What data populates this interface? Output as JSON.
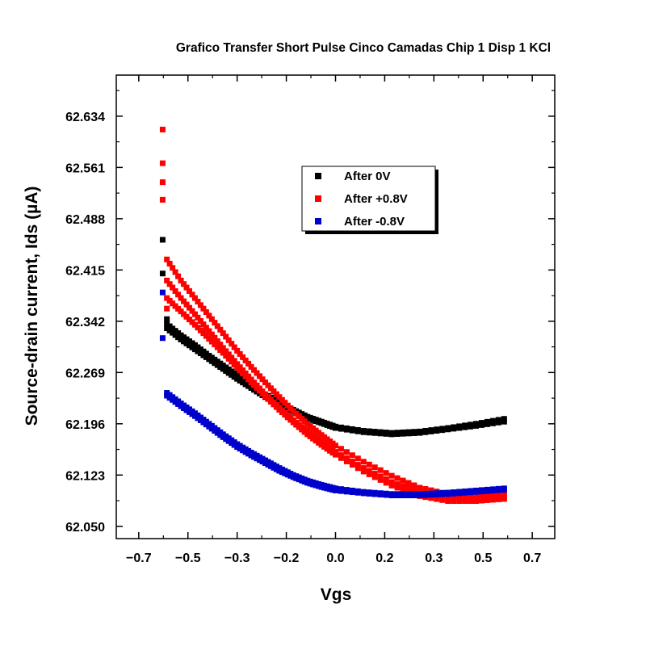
{
  "chart_data": {
    "type": "scatter",
    "title": "Grafico Transfer Short Pulse Cinco Camadas Chip 1 Disp 1 KCl",
    "xlabel": "Vgs",
    "ylabel": "Source-drain current, Ids (µA)",
    "xlim": [
      -0.78,
      0.78
    ],
    "ylim": [
      62.0325,
      62.6925
    ],
    "x_ticks": [
      -0.7,
      -0.525,
      -0.35,
      -0.175,
      0.0,
      0.175,
      0.35,
      0.525,
      0.7
    ],
    "x_tick_labels": [
      "−0.7",
      "−0.5",
      "−0.3",
      "−0.2",
      "0.0",
      "0.2",
      "0.3",
      "0.5",
      "0.7"
    ],
    "y_ticks": [
      62.05,
      62.123,
      62.196,
      62.269,
      62.342,
      62.415,
      62.488,
      62.561,
      62.634
    ],
    "y_tick_labels": [
      "62.050",
      "62.123",
      "62.196",
      "62.269",
      "62.342",
      "62.415",
      "62.488",
      "62.561",
      "62.634"
    ],
    "legend": {
      "placement": "top-center"
    },
    "series": [
      {
        "name": "After 0V",
        "color": "#000000",
        "branches": [
          {
            "x": [
              -0.6,
              -0.55,
              -0.5,
              -0.45,
              -0.4,
              -0.35,
              -0.3,
              -0.25,
              -0.2,
              -0.15,
              -0.1,
              -0.05,
              0.0,
              0.1,
              0.2,
              0.3,
              0.4,
              0.5,
              0.6
            ],
            "y": [
              62.338,
              62.322,
              62.308,
              62.293,
              62.279,
              62.265,
              62.251,
              62.238,
              62.227,
              62.216,
              62.206,
              62.199,
              62.192,
              62.186,
              62.183,
              62.185,
              62.19,
              62.196,
              62.203
            ]
          },
          {
            "x": [
              -0.6,
              -0.55,
              -0.5,
              -0.45,
              -0.4,
              -0.35,
              -0.3,
              -0.25,
              -0.2,
              -0.15,
              -0.1,
              -0.05,
              0.0,
              0.1,
              0.2,
              0.3,
              0.4,
              0.5,
              0.6
            ],
            "y": [
              62.332,
              62.316,
              62.302,
              62.288,
              62.274,
              62.26,
              62.247,
              62.234,
              62.223,
              62.213,
              62.204,
              62.197,
              62.19,
              62.184,
              62.181,
              62.183,
              62.188,
              62.193,
              62.199
            ]
          }
        ],
        "extra_points": {
          "x": [
            -0.615,
            -0.615,
            -0.6
          ],
          "y": [
            62.458,
            62.41,
            62.345
          ]
        }
      },
      {
        "name": "After +0.8V",
        "color": "#ff0000",
        "branches": [
          {
            "x": [
              -0.6,
              -0.55,
              -0.5,
              -0.45,
              -0.4,
              -0.35,
              -0.3,
              -0.25,
              -0.2,
              -0.15,
              -0.1,
              -0.05,
              0.0,
              0.1,
              0.2,
              0.3,
              0.4,
              0.5,
              0.6
            ],
            "y": [
              62.43,
              62.4,
              62.375,
              62.35,
              62.325,
              62.3,
              62.277,
              62.255,
              62.234,
              62.214,
              62.196,
              62.18,
              62.165,
              62.142,
              62.122,
              62.105,
              62.096,
              62.094,
              62.095
            ]
          },
          {
            "x": [
              -0.6,
              -0.55,
              -0.5,
              -0.45,
              -0.4,
              -0.35,
              -0.3,
              -0.25,
              -0.2,
              -0.15,
              -0.1,
              -0.05,
              0.0,
              0.1,
              0.2,
              0.3,
              0.4,
              0.5,
              0.6
            ],
            "y": [
              62.4,
              62.375,
              62.352,
              62.328,
              62.304,
              62.281,
              62.259,
              62.238,
              62.219,
              62.201,
              62.185,
              62.17,
              62.156,
              62.133,
              62.113,
              62.098,
              62.09,
              62.089,
              62.091
            ]
          },
          {
            "x": [
              -0.6,
              -0.55,
              -0.5,
              -0.45,
              -0.4,
              -0.35,
              -0.3,
              -0.25,
              -0.2,
              -0.15,
              -0.1,
              -0.05,
              0.0,
              0.1,
              0.2,
              0.3,
              0.4,
              0.5,
              0.6
            ],
            "y": [
              62.375,
              62.356,
              62.337,
              62.317,
              62.297,
              62.276,
              62.255,
              62.235,
              62.216,
              62.198,
              62.181,
              62.166,
              62.152,
              62.128,
              62.108,
              62.093,
              62.086,
              62.086,
              62.089
            ]
          }
        ],
        "extra_points": {
          "x": [
            -0.615,
            -0.615,
            -0.615,
            -0.615,
            -0.6
          ],
          "y": [
            62.615,
            62.567,
            62.54,
            62.515,
            62.36
          ]
        }
      },
      {
        "name": "After -0.8V",
        "color": "#0000cc",
        "branches": [
          {
            "x": [
              -0.6,
              -0.55,
              -0.5,
              -0.45,
              -0.4,
              -0.35,
              -0.3,
              -0.25,
              -0.2,
              -0.15,
              -0.1,
              -0.05,
              0.0,
              0.1,
              0.2,
              0.3,
              0.4,
              0.5,
              0.6
            ],
            "y": [
              62.24,
              62.225,
              62.211,
              62.196,
              62.181,
              62.167,
              62.155,
              62.144,
              62.133,
              62.123,
              62.115,
              62.109,
              62.104,
              62.099,
              62.096,
              62.096,
              62.098,
              62.101,
              62.104
            ]
          },
          {
            "x": [
              -0.6,
              -0.55,
              -0.5,
              -0.45,
              -0.4,
              -0.35,
              -0.3,
              -0.25,
              -0.2,
              -0.15,
              -0.1,
              -0.05,
              0.0,
              0.1,
              0.2,
              0.3,
              0.4,
              0.5,
              0.6
            ],
            "y": [
              62.236,
              62.221,
              62.207,
              62.192,
              62.177,
              62.163,
              62.151,
              62.14,
              62.129,
              62.12,
              62.112,
              62.106,
              62.101,
              62.097,
              62.094,
              62.094,
              62.096,
              62.099,
              62.102
            ]
          }
        ],
        "extra_points": {
          "x": [
            -0.615,
            -0.615
          ],
          "y": [
            62.383,
            62.318
          ]
        }
      }
    ]
  }
}
